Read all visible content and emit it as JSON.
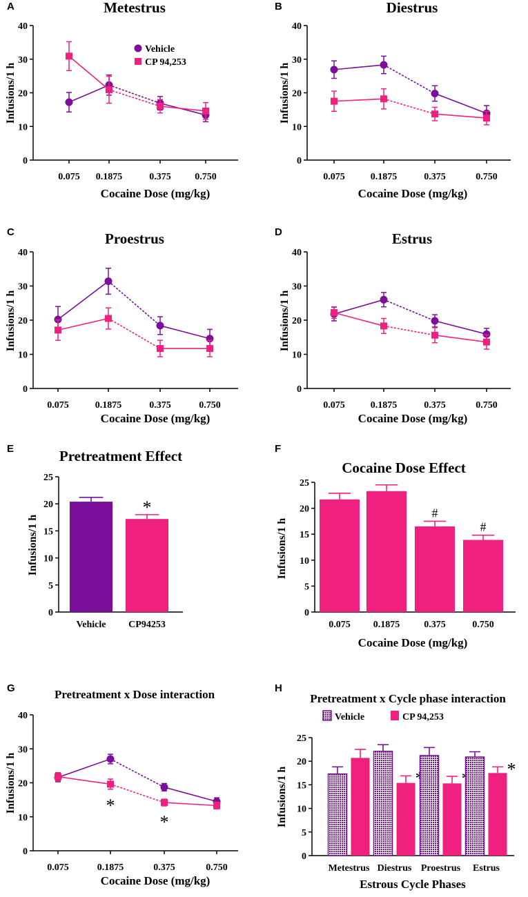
{
  "colors": {
    "vehicle": "#7a0f99",
    "cp": "#f0207e",
    "axis": "#000000"
  },
  "chart_data": [
    {
      "id": "A",
      "type": "line",
      "panel_label": "A",
      "title": "Metestrus",
      "categories": [
        "0.075",
        "0.1875",
        "0.375",
        "0.750"
      ],
      "xlabel": "Cocaine Dose (mg/kg)",
      "ylabel": "Infusions/1 h",
      "ylim": [
        0,
        40
      ],
      "yticks": [
        0,
        10,
        20,
        30,
        40
      ],
      "legend_position": "top-right",
      "legend": [
        {
          "name": "Vehicle",
          "marker": "circle",
          "color_key": "vehicle"
        },
        {
          "name": "CP 94,253",
          "marker": "square",
          "color_key": "cp"
        }
      ],
      "series": [
        {
          "name": "Vehicle",
          "marker": "circle",
          "color_key": "vehicle",
          "values": [
            17.2,
            22.3,
            16.9,
            13.4
          ],
          "errors": [
            2.9,
            3.0,
            2.0,
            2.0
          ]
        },
        {
          "name": "CP 94,253",
          "marker": "square",
          "color_key": "cp",
          "values": [
            30.9,
            20.9,
            16.0,
            14.6
          ],
          "errors": [
            4.3,
            4.0,
            2.0,
            2.5
          ]
        }
      ]
    },
    {
      "id": "B",
      "type": "line",
      "panel_label": "B",
      "title": "Diestrus",
      "categories": [
        "0.075",
        "0.1875",
        "0.375",
        "0.750"
      ],
      "xlabel": "Cocaine Dose (mg/kg)",
      "ylabel": "Infusions/1 h",
      "ylim": [
        0,
        40
      ],
      "yticks": [
        0,
        10,
        20,
        30,
        40
      ],
      "series": [
        {
          "name": "Vehicle",
          "marker": "circle",
          "color_key": "vehicle",
          "values": [
            26.9,
            28.3,
            19.8,
            13.9
          ],
          "errors": [
            2.6,
            2.6,
            2.3,
            2.3
          ]
        },
        {
          "name": "CP 94,253",
          "marker": "square",
          "color_key": "cp",
          "values": [
            17.5,
            18.2,
            13.7,
            12.5
          ],
          "errors": [
            3.0,
            3.0,
            2.0,
            2.0
          ]
        }
      ]
    },
    {
      "id": "C",
      "type": "line",
      "panel_label": "C",
      "title": "Proestrus",
      "categories": [
        "0.075",
        "0.1875",
        "0.375",
        "0.750"
      ],
      "xlabel": "Cocaine Dose (mg/kg)",
      "ylabel": "Infusions/1 h",
      "ylim": [
        0,
        40
      ],
      "yticks": [
        0,
        10,
        20,
        30,
        40
      ],
      "series": [
        {
          "name": "Vehicle",
          "marker": "circle",
          "color_key": "vehicle",
          "values": [
            20.2,
            31.4,
            18.4,
            14.6
          ],
          "errors": [
            3.8,
            3.8,
            2.6,
            2.7
          ]
        },
        {
          "name": "CP 94,253",
          "marker": "square",
          "color_key": "cp",
          "values": [
            17.1,
            20.5,
            11.7,
            11.7
          ],
          "errors": [
            3.0,
            3.1,
            2.4,
            2.4
          ]
        }
      ]
    },
    {
      "id": "D",
      "type": "line",
      "panel_label": "D",
      "title": "Estrus",
      "categories": [
        "0.075",
        "0.1875",
        "0.375",
        "0.750"
      ],
      "xlabel": "Cocaine Dose (mg/kg)",
      "ylabel": "Infusions/1 h",
      "ylim": [
        0,
        40
      ],
      "yticks": [
        0,
        10,
        20,
        30,
        40
      ],
      "series": [
        {
          "name": "Vehicle",
          "marker": "circle",
          "color_key": "vehicle",
          "values": [
            21.8,
            26.0,
            19.8,
            15.9
          ],
          "errors": [
            2.0,
            2.1,
            1.8,
            1.7
          ]
        },
        {
          "name": "CP 94,253",
          "marker": "square",
          "color_key": "cp",
          "values": [
            22.2,
            18.3,
            15.6,
            13.6
          ],
          "errors": [
            1.7,
            2.2,
            2.2,
            2.1
          ]
        }
      ]
    },
    {
      "id": "E",
      "type": "bar",
      "panel_label": "E",
      "title": "Pretreatment Effect",
      "categories": [
        "Vehicle",
        "CP94253"
      ],
      "values": [
        20.4,
        17.2
      ],
      "errors": [
        0.8,
        0.8
      ],
      "bar_color_keys": [
        "vehicle",
        "cp"
      ],
      "annotations": [
        "",
        "*"
      ],
      "xlabel": "",
      "ylabel": "Infusions/1 h",
      "ylim": [
        0,
        25
      ],
      "yticks": [
        0,
        5,
        10,
        15,
        20,
        25
      ]
    },
    {
      "id": "F",
      "type": "bar",
      "panel_label": "F",
      "title": "Cocaine Dose Effect",
      "categories": [
        "0.075",
        "0.1875",
        "0.375",
        "0.750"
      ],
      "values": [
        21.7,
        23.3,
        16.5,
        13.9
      ],
      "errors": [
        1.2,
        1.2,
        1.0,
        0.9
      ],
      "bar_color_keys": [
        "cp",
        "cp",
        "cp",
        "cp"
      ],
      "annotations": [
        "",
        "",
        "#",
        "#"
      ],
      "xlabel": "Cocaine Dose (mg/kg)",
      "ylabel": "Infusions/1 h",
      "ylim": [
        0,
        25
      ],
      "yticks": [
        0,
        5,
        10,
        15,
        20,
        25
      ]
    },
    {
      "id": "G",
      "type": "line",
      "panel_label": "G",
      "title": "Pretreatment x Dose interaction",
      "categories": [
        "0.075",
        "0.1875",
        "0.375",
        "0.750"
      ],
      "xlabel": "Cocaine Dose (mg/kg)",
      "ylabel": "Infusions/1 h",
      "ylim": [
        0,
        40
      ],
      "yticks": [
        0,
        10,
        20,
        30,
        40
      ],
      "series": [
        {
          "name": "Vehicle",
          "marker": "circle",
          "color_key": "vehicle",
          "values": [
            21.6,
            27.0,
            18.7,
            14.5
          ],
          "errors": [
            1.3,
            1.4,
            1.1,
            1.1
          ]
        },
        {
          "name": "CP 94,253",
          "marker": "square",
          "color_key": "cp",
          "values": [
            21.8,
            19.6,
            14.2,
            13.3
          ],
          "errors": [
            1.2,
            1.5,
            1.0,
            1.0
          ]
        }
      ],
      "annotations": [
        "",
        "*",
        "*",
        ""
      ]
    },
    {
      "id": "H",
      "type": "bar",
      "panel_label": "H",
      "title": "Pretreatment x Cycle phase interaction",
      "categories": [
        "Metestrus",
        "Diestrus",
        "Proestrus",
        "Estrus"
      ],
      "legend_position": "top-left",
      "legend": [
        {
          "name": "Vehicle",
          "pattern": "hatched",
          "color_key": "vehicle"
        },
        {
          "name": "CP 94,253",
          "pattern": "solid",
          "color_key": "cp"
        }
      ],
      "series": [
        {
          "name": "Vehicle",
          "pattern": "hatched",
          "color_key": "vehicle",
          "values": [
            17.3,
            22.1,
            21.2,
            20.9
          ],
          "errors": [
            1.5,
            1.4,
            1.7,
            1.1
          ]
        },
        {
          "name": "CP 94,253",
          "pattern": "solid",
          "color_key": "cp",
          "values": [
            20.7,
            15.4,
            15.3,
            17.5
          ],
          "errors": [
            1.8,
            1.5,
            1.5,
            1.3
          ]
        }
      ],
      "annotations": [
        "",
        "*",
        "*",
        "*"
      ],
      "xlabel": "Estrous Cycle Phases",
      "ylabel": "Infusions/1 h",
      "ylim": [
        0,
        25
      ],
      "yticks": [
        0,
        5,
        10,
        15,
        20,
        25
      ]
    }
  ]
}
